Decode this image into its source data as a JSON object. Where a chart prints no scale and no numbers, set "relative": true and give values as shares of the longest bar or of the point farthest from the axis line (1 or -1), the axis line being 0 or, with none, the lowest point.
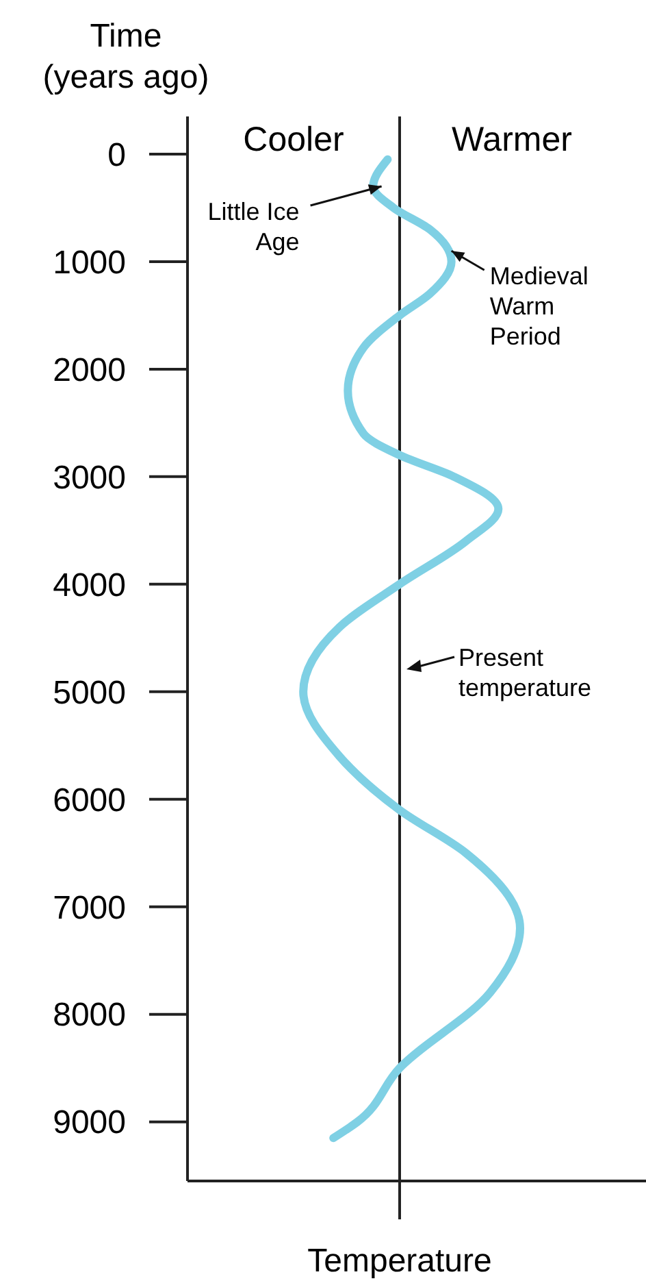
{
  "chart_data": {
    "type": "line",
    "orientation": "horizontal",
    "relative": true,
    "xlabel": "Temperature",
    "ylabel": "Time\n(years ago)",
    "ylim": [
      9550,
      -350
    ],
    "yticks": [
      0,
      1000,
      2000,
      3000,
      4000,
      5000,
      6000,
      7000,
      8000,
      9000
    ],
    "series": [
      {
        "color": "#7fd0e4",
        "x": [
          50,
          300,
          500,
          700,
          1000,
          1300,
          1500,
          1800,
          2200,
          2600,
          2800,
          3000,
          3300,
          3600,
          4000,
          4400,
          5000,
          5600,
          6100,
          6500,
          7200,
          7800,
          8500,
          9000,
          9150
        ],
        "values": [
          -0.1,
          -0.22,
          -0.05,
          0.25,
          0.43,
          0.25,
          0,
          -0.3,
          -0.43,
          -0.3,
          0,
          0.45,
          0.82,
          0.55,
          0,
          -0.5,
          -0.8,
          -0.5,
          0,
          0.55,
          1,
          0.75,
          0,
          -0.35,
          -0.55
        ]
      }
    ],
    "ref_lines": [
      {
        "axis": "x",
        "value": 0,
        "label": "Present temperature"
      }
    ],
    "annotations": [
      "Cooler",
      "Warmer",
      {
        "text": "Little Ice Age",
        "x": -0.15,
        "y": 300
      },
      {
        "text": "Medieval Warm Period",
        "x": 0.43,
        "y": 900
      }
    ],
    "line_style": "solid",
    "marker": "none",
    "grid": false
  }
}
